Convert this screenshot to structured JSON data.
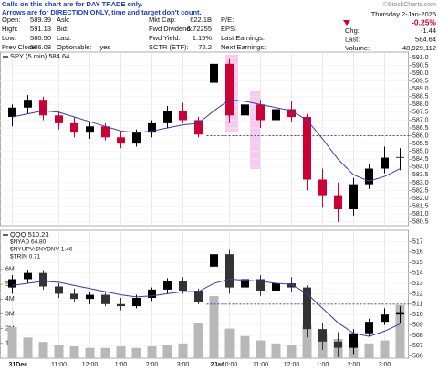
{
  "header": {
    "note": [
      "Calls on this chart are for DAY TRADE only.",
      "Arrows are for DIRECTION ONLY, time and target don't count."
    ],
    "fields": [
      [
        {
          "label": "Open:",
          "value": "589.39"
        },
        {
          "label": "High:",
          "value": "591.13"
        },
        {
          "label": "Low:",
          "value": "580.50"
        },
        {
          "label": "Prev Close:",
          "value": "586.08"
        }
      ],
      [
        {
          "label": "Ask:"
        },
        {
          "label": "Bid:"
        },
        {
          "label": "Last:"
        },
        {
          "label": "Optionable:",
          "value": "yes"
        }
      ],
      [
        {
          "label": "Mkt Cap:",
          "value": "622.1B"
        },
        {
          "label": "Fwd Dividend:",
          "value": "6.72255"
        },
        {
          "label": "Fwd Yield:",
          "value": "1.15%"
        },
        {
          "label": "SCTR (ETF):",
          "value": "72.2"
        }
      ],
      [
        {
          "label": "P/E:"
        },
        {
          "label": "EPS:"
        },
        {
          "label": "Last Earnings:"
        },
        {
          "label": "Next Earnings:"
        }
      ]
    ],
    "brand": "©StockCharts.com",
    "date": "Thursday 2-Jan-2025",
    "change_pct": "-0.25%",
    "right_fields": [
      {
        "label": "Chg:",
        "value": "-1.44"
      },
      {
        "label": "Last:",
        "value": "584.64"
      },
      {
        "label": "Volume:",
        "value": "48,929,112"
      }
    ]
  },
  "chart_data": [
    {
      "type": "candlestick",
      "title": "SPY (5 min) 584.64",
      "up_color": "#000000",
      "down_color": "#cc0033",
      "grid": true,
      "open": [
        587.2,
        587.8,
        588.3,
        587.3,
        586.8,
        586.2,
        586.6,
        585.9,
        585.5,
        586.2,
        586.8,
        587.6,
        587.0,
        589.39,
        590.6,
        587.3,
        588.0,
        587.0,
        587.7,
        587.2,
        583.2,
        582.2,
        581.3,
        582.9,
        583.9,
        584.6
      ],
      "high": [
        588.0,
        588.6,
        588.5,
        587.6,
        587.2,
        586.9,
        586.8,
        586.3,
        586.4,
        587.0,
        587.9,
        588.1,
        587.2,
        591.13,
        590.9,
        588.4,
        588.3,
        588.0,
        588.2,
        587.4,
        583.9,
        583.0,
        583.3,
        584.2,
        585.3,
        585.2
      ],
      "low": [
        586.6,
        587.4,
        587.0,
        586.4,
        585.9,
        585.8,
        585.7,
        585.2,
        585.3,
        585.9,
        586.5,
        586.8,
        585.9,
        588.4,
        586.8,
        586.3,
        586.5,
        586.8,
        586.9,
        582.5,
        581.4,
        580.5,
        580.9,
        582.6,
        583.6,
        583.8
      ],
      "close": [
        587.8,
        588.3,
        587.3,
        586.8,
        586.2,
        586.6,
        585.9,
        585.5,
        586.2,
        586.8,
        587.6,
        587.0,
        586.08,
        590.6,
        587.3,
        588.0,
        587.0,
        587.7,
        587.2,
        583.2,
        582.2,
        581.3,
        582.9,
        583.9,
        584.6,
        584.64
      ],
      "ma": {
        "color": "#3a3ab8",
        "values": [
          587.2,
          587.4,
          587.6,
          587.5,
          587.2,
          586.9,
          586.6,
          586.3,
          586.2,
          586.3,
          586.5,
          586.7,
          586.8,
          587.6,
          588.3,
          588.2,
          588.0,
          587.8,
          587.6,
          587.0,
          585.8,
          584.5,
          583.5,
          583.1,
          583.4,
          583.9
        ]
      },
      "reference_line": {
        "value": 586.0,
        "color": "#2a2ad0"
      },
      "ylim": [
        580.25,
        591.35
      ],
      "yticks": [
        {
          "value": 580.5,
          "label": "580.5"
        },
        {
          "value": 581,
          "label": "581.0"
        },
        {
          "value": 581.5,
          "label": "581.5"
        },
        {
          "value": 582,
          "label": "582.0"
        },
        {
          "value": 582.5,
          "label": "582.5"
        },
        {
          "value": 583,
          "label": "583.0"
        },
        {
          "value": 583.5,
          "label": "583.5"
        },
        {
          "value": 584,
          "label": "584.0"
        },
        {
          "value": 584.5,
          "label": "584.5"
        },
        {
          "value": 585,
          "label": "585.0"
        },
        {
          "value": 585.5,
          "label": "585.5"
        },
        {
          "value": 586,
          "label": "586.0"
        },
        {
          "value": 586.5,
          "label": "586.5"
        },
        {
          "value": 587,
          "label": "587.0"
        },
        {
          "value": 587.5,
          "label": "587.5"
        },
        {
          "value": 588,
          "label": "588.0"
        },
        {
          "value": 588.5,
          "label": "588.5"
        },
        {
          "value": 589,
          "label": "589.0"
        },
        {
          "value": 589.5,
          "label": "589.5"
        },
        {
          "value": 590,
          "label": "590.0"
        },
        {
          "value": 590.5,
          "label": "590.5"
        },
        {
          "value": 591,
          "label": "591.0"
        }
      ]
    },
    {
      "type": "candlestick",
      "title": "QQQ 510.23",
      "indicators": [
        "$NYAD 64.80",
        "$NYUPV:$NYDNV 1.46",
        "$TRIN 0.71"
      ],
      "up_color": "#000000",
      "down_color": "#333333",
      "grid": true,
      "categories": [
        "31Dec",
        null,
        null,
        "11:00",
        null,
        "12:00",
        null,
        "1:00",
        null,
        "2:00",
        null,
        "3:00",
        null,
        "2Jan",
        "10:00",
        null,
        "11:00",
        null,
        "12:00",
        null,
        "1:00",
        null,
        "2:00",
        null,
        "3:00",
        null
      ],
      "open": [
        512.6,
        513.4,
        514.0,
        512.7,
        512.0,
        511.5,
        511.9,
        511.0,
        510.8,
        511.6,
        512.4,
        513.2,
        512.3,
        514.6,
        515.8,
        512.6,
        513.4,
        512.3,
        513.0,
        512.6,
        508.6,
        507.4,
        506.8,
        508.2,
        509.3,
        510.0
      ],
      "high": [
        513.8,
        514.3,
        514.2,
        513.0,
        512.5,
        512.2,
        512.1,
        511.6,
        511.9,
        512.6,
        513.5,
        513.6,
        512.5,
        516.5,
        516.2,
        514.0,
        513.8,
        513.6,
        513.6,
        512.8,
        509.2,
        508.3,
        508.6,
        509.6,
        510.6,
        510.8
      ],
      "low": [
        512.0,
        513.0,
        512.4,
        511.6,
        511.2,
        511.0,
        510.8,
        510.4,
        510.6,
        511.3,
        512.0,
        512.0,
        511.0,
        513.5,
        512.0,
        511.5,
        511.8,
        512.0,
        512.2,
        507.8,
        506.6,
        505.9,
        506.2,
        507.9,
        509.0,
        509.2
      ],
      "close": [
        513.4,
        514.0,
        512.7,
        512.0,
        511.5,
        511.9,
        511.0,
        510.8,
        511.6,
        512.4,
        513.2,
        512.3,
        511.2,
        515.8,
        512.6,
        513.4,
        512.3,
        513.0,
        512.6,
        508.6,
        507.4,
        506.8,
        508.2,
        509.3,
        510.0,
        510.23
      ],
      "ma": {
        "color": "#3a3ab8",
        "values": [
          512.8,
          513.0,
          513.2,
          513.1,
          512.8,
          512.5,
          512.2,
          511.9,
          511.7,
          511.8,
          512.0,
          512.2,
          512.2,
          513.0,
          513.4,
          513.3,
          513.2,
          513.0,
          512.9,
          512.0,
          510.6,
          509.2,
          508.2,
          507.9,
          508.4,
          509.1
        ]
      },
      "volume": {
        "axis": "y2",
        "color": "#b8b8b8",
        "values": [
          2100000,
          1400000,
          1100000,
          900000,
          800000,
          700000,
          700000,
          800000,
          700000,
          800000,
          900000,
          1000000,
          2400000,
          4200000,
          2000000,
          1500000,
          1200000,
          1000000,
          900000,
          2200000,
          1600000,
          1300000,
          1100000,
          1000000,
          1200000,
          3600000
        ]
      },
      "reference_line": {
        "value": 511.0,
        "color": "#2a2ad0"
      },
      "ylim": [
        505.8,
        518.1
      ],
      "yticks": [
        506,
        507,
        508,
        509,
        510,
        511,
        512,
        513,
        514,
        515,
        516,
        517
      ],
      "y2lim": [
        0,
        8650000
      ],
      "y2ticks": [
        {
          "value": 1000000,
          "label": "1M"
        },
        {
          "value": 2000000,
          "label": "2M"
        },
        {
          "value": 3000000,
          "label": "3M"
        },
        {
          "value": 4000000,
          "label": "4M"
        },
        {
          "value": 5000000,
          "label": "5M"
        },
        {
          "value": 6000000,
          "label": "6M"
        }
      ]
    }
  ]
}
